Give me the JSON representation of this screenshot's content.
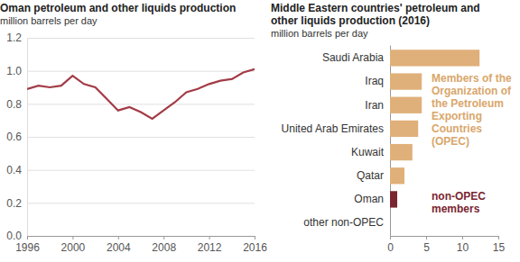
{
  "chart_data": [
    {
      "type": "line",
      "title": "Oman petroleum and other liquids production",
      "subtitle": "million barrels per day",
      "x": [
        1996,
        1997,
        1998,
        1999,
        2000,
        2001,
        2002,
        2003,
        2004,
        2005,
        2006,
        2007,
        2008,
        2009,
        2010,
        2011,
        2012,
        2013,
        2014,
        2015,
        2016
      ],
      "values": [
        0.89,
        0.91,
        0.9,
        0.91,
        0.97,
        0.92,
        0.9,
        0.83,
        0.76,
        0.78,
        0.75,
        0.71,
        0.76,
        0.81,
        0.87,
        0.89,
        0.92,
        0.94,
        0.95,
        0.99,
        1.01
      ],
      "color": "#a33b46",
      "xlim": [
        1996,
        2016
      ],
      "xticks": [
        1996,
        2000,
        2004,
        2008,
        2012,
        2016
      ],
      "ylim": [
        0,
        1.2
      ],
      "yticks": [
        {
          "value": 0,
          "label": "0.0"
        },
        0.2,
        0.4,
        0.6,
        0.8,
        {
          "value": 1,
          "label": "1.0"
        },
        1.2
      ],
      "grid": true
    },
    {
      "type": "bar",
      "orientation": "horizontal",
      "title": "Middle Eastern countries' petroleum and other liquids production (2016)",
      "subtitle": "million barrels per day",
      "categories": [
        "Saudi Arabia",
        "Iraq",
        "Iran",
        "United Arab Emirates",
        "Kuwait",
        "Qatar",
        "Oman",
        "other non-OPEC"
      ],
      "values": [
        12.4,
        4.4,
        4.4,
        3.9,
        3.1,
        2.0,
        1.0,
        0
      ],
      "colors": [
        "#e0b07a",
        "#e0b07a",
        "#e0b07a",
        "#e0b07a",
        "#e0b07a",
        "#e0b07a",
        "#7b2530",
        "#7b2530"
      ],
      "xlim": [
        0,
        15
      ],
      "xticks": [
        0,
        5,
        10,
        15
      ],
      "annotations": [
        {
          "text": "Members of the Organization of the Petroleum Exporting Countries (OPEC)",
          "color": "#d9a66a"
        },
        {
          "text": "non-OPEC members",
          "color": "#7b2530"
        }
      ]
    }
  ]
}
